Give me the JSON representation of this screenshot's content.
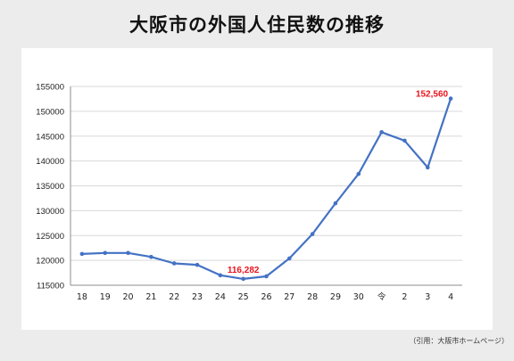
{
  "page": {
    "title": "大阪市の外国人住民数の推移",
    "source": "（引用：大阪市ホームページ）"
  },
  "chart_data": {
    "type": "line",
    "title": "",
    "xlabel": "",
    "ylabel": "",
    "categories": [
      "18",
      "19",
      "20",
      "21",
      "22",
      "23",
      "24",
      "25",
      "26",
      "27",
      "28",
      "29",
      "30",
      "令",
      "2",
      "3",
      "4"
    ],
    "series": [
      {
        "values": [
          121300,
          121500,
          121500,
          120700,
          119400,
          119100,
          117000,
          116282,
          116800,
          120400,
          125300,
          131500,
          137400,
          145800,
          144100,
          138700,
          152560
        ],
        "color": "#4472c4"
      }
    ],
    "ylim": [
      115000,
      155000
    ],
    "yticks": [
      "115000",
      "120000",
      "125000",
      "130000",
      "135000",
      "140000",
      "145000",
      "150000",
      "155000"
    ],
    "grid": true,
    "annotations": [
      {
        "category": "25",
        "value": 116282,
        "text": "116,282",
        "color": "#e8141e"
      },
      {
        "category": "4",
        "value": 152560,
        "text": "152,560",
        "color": "#e8141e"
      }
    ]
  }
}
